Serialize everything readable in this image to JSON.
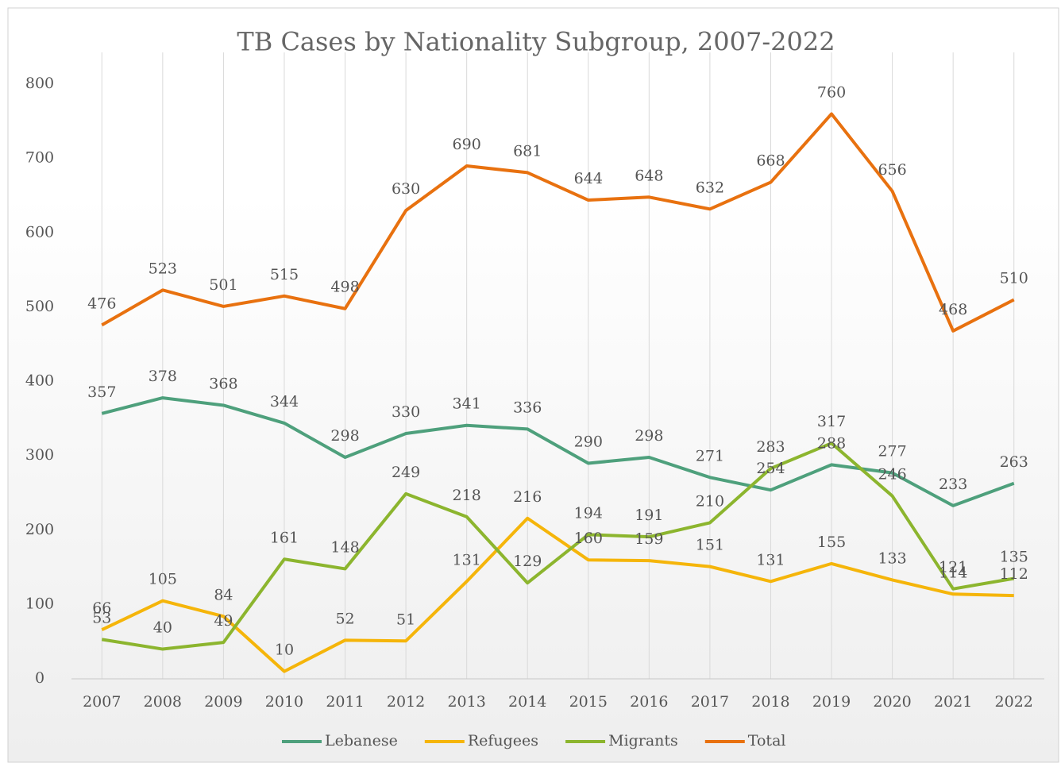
{
  "chart_data": {
    "type": "line",
    "title": "TB Cases by Nationality Subgroup, 2007-2022",
    "categories": [
      "2007",
      "2008",
      "2009",
      "2010",
      "2011",
      "2012",
      "2013",
      "2014",
      "2015",
      "2016",
      "2017",
      "2018",
      "2019",
      "2020",
      "2021",
      "2022"
    ],
    "series": [
      {
        "name": "Lebanese",
        "color": "#4ea07c",
        "values": [
          357,
          378,
          368,
          344,
          298,
          330,
          341,
          336,
          290,
          298,
          271,
          254,
          288,
          277,
          233,
          263
        ]
      },
      {
        "name": "Refugees",
        "color": "#f5b50a",
        "values": [
          66,
          105,
          84,
          10,
          52,
          51,
          131,
          216,
          160,
          159,
          151,
          131,
          155,
          133,
          114,
          112
        ]
      },
      {
        "name": "Migrants",
        "color": "#8cb52e",
        "values": [
          53,
          40,
          49,
          161,
          148,
          249,
          218,
          129,
          194,
          191,
          210,
          283,
          317,
          246,
          121,
          135
        ]
      },
      {
        "name": "Total",
        "color": "#e8710f",
        "values": [
          476,
          523,
          501,
          515,
          498,
          630,
          690,
          681,
          644,
          648,
          632,
          668,
          760,
          656,
          468,
          510
        ]
      }
    ],
    "ylim": [
      0,
      800
    ],
    "yticks": [
      0,
      100,
      200,
      300,
      400,
      500,
      600,
      700,
      800
    ],
    "grid": false,
    "legend": "bottom"
  }
}
